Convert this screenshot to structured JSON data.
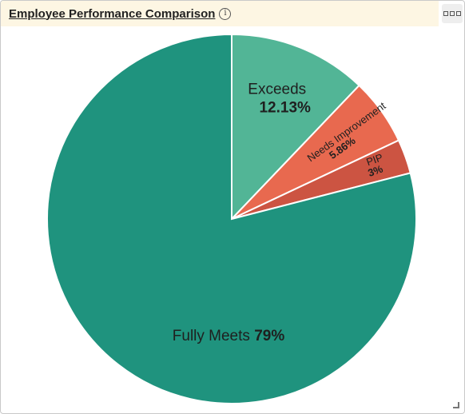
{
  "header": {
    "title": "Employee Performance Comparison",
    "info_icon": "info-icon",
    "menu_icon": "more-options-icon"
  },
  "chart_data": {
    "type": "pie",
    "categories": [
      "Exceeds",
      "Needs Improvement",
      "PIP",
      "Fully Meets"
    ],
    "values": [
      12.13,
      5.86,
      3,
      79
    ],
    "value_labels": [
      "12.13%",
      "5.86%",
      "3%",
      "79%"
    ],
    "colors": [
      "#52b596",
      "#e8694f",
      "#cc5442",
      "#1f937e"
    ],
    "start_angle_deg": 0,
    "direction": "clockwise",
    "legend": "none"
  }
}
